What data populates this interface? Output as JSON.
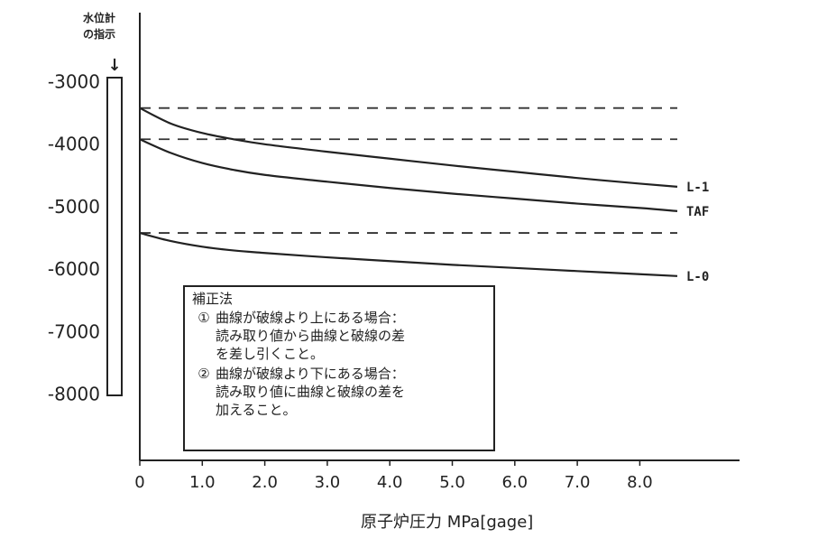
{
  "chart_data": {
    "type": "line",
    "xlabel": "原子炉圧力 MPa[gage]",
    "gauge_title": [
      "水位計",
      "の指示"
    ],
    "gauge_arrow": "↓",
    "xlim": [
      0,
      9.0
    ],
    "ylim": [
      -8300,
      -2750
    ],
    "x_ticks": [
      0,
      1.0,
      2.0,
      3.0,
      4.0,
      5.0,
      6.0,
      7.0,
      8.0
    ],
    "x_tick_labels": [
      "0",
      "1.0",
      "2.0",
      "3.0",
      "4.0",
      "5.0",
      "6.0",
      "7.0",
      "8.0"
    ],
    "y_ticks": [
      -3000,
      -4000,
      -5000,
      -6000,
      -7000,
      -8000
    ],
    "y_tick_labels": [
      "-3000",
      "-4000",
      "-5000",
      "-6000",
      "-7000",
      "-8000"
    ],
    "grid": false,
    "series": [
      {
        "name": "L-1",
        "x": [
          0,
          0.5,
          1.0,
          1.5,
          2.0,
          3.0,
          4.0,
          5.0,
          6.0,
          7.0,
          8.0,
          8.6
        ],
        "y": [
          -3400,
          -3650,
          -3800,
          -3900,
          -3980,
          -4100,
          -4210,
          -4320,
          -4420,
          -4520,
          -4610,
          -4660
        ]
      },
      {
        "name": "TAF",
        "x": [
          0,
          0.5,
          1.0,
          1.5,
          2.0,
          3.0,
          4.0,
          5.0,
          6.0,
          7.0,
          8.0,
          8.6
        ],
        "y": [
          -3900,
          -4120,
          -4280,
          -4390,
          -4470,
          -4580,
          -4680,
          -4770,
          -4850,
          -4930,
          -5000,
          -5050
        ]
      },
      {
        "name": "L-0",
        "x": [
          0,
          0.5,
          1.0,
          1.5,
          2.0,
          3.0,
          4.0,
          5.0,
          6.0,
          7.0,
          8.0,
          8.6
        ],
        "y": [
          -5400,
          -5530,
          -5620,
          -5680,
          -5720,
          -5790,
          -5850,
          -5910,
          -5960,
          -6010,
          -6060,
          -6090
        ]
      }
    ],
    "reference_lines": [
      {
        "x": [
          0,
          8.6
        ],
        "y": -3400,
        "style": "dashed"
      },
      {
        "x": [
          0,
          8.6
        ],
        "y": -3900,
        "style": "dashed"
      },
      {
        "x": [
          0,
          8.6
        ],
        "y": -5400,
        "style": "dashed"
      }
    ]
  },
  "correction_box": {
    "title": "補正法",
    "rules": [
      {
        "marker": "①",
        "lines": [
          "曲線が破線より上にある場合：",
          "読み取り値から曲線と破線の差",
          "を差し引くこと。"
        ]
      },
      {
        "marker": "②",
        "lines": [
          "曲線が破線より下にある場合：",
          "読み取り値に曲線と破線の差を",
          "加えること。"
        ]
      }
    ]
  }
}
